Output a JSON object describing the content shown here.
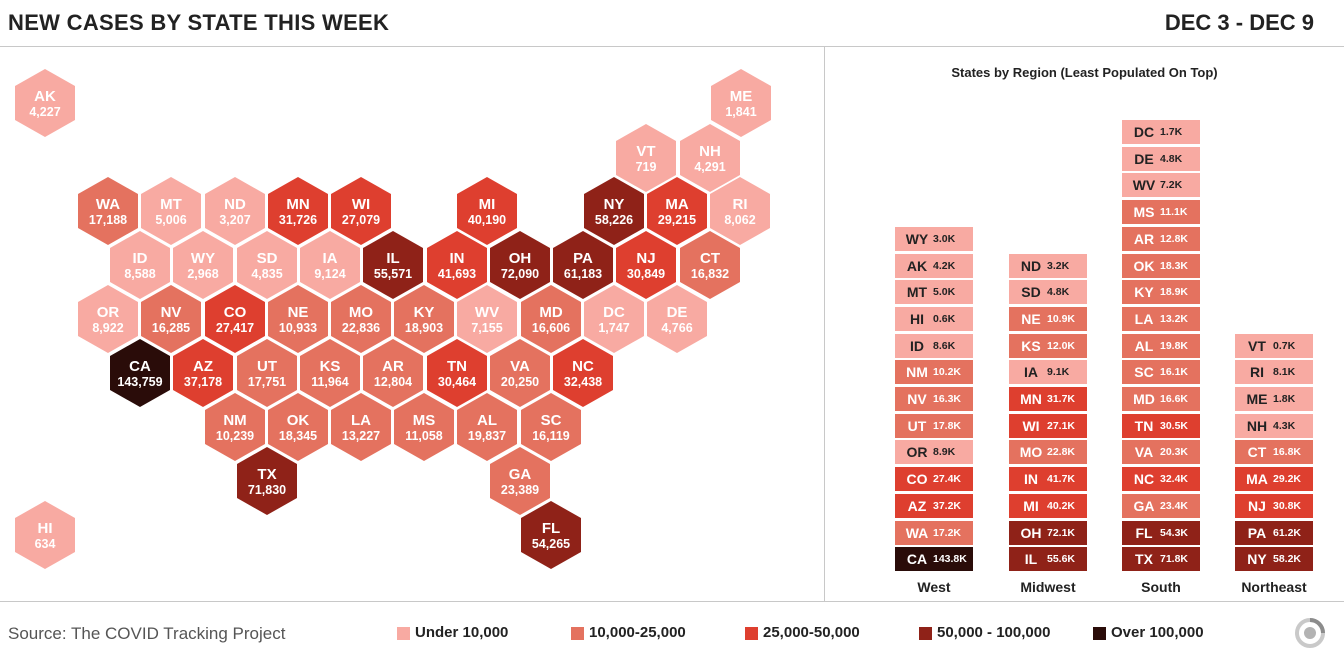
{
  "header": {
    "title": "NEW CASES BY STATE THIS WEEK",
    "date_range": "DEC 3 - DEC 9"
  },
  "colors": {
    "under_10k": "#f8aaa2",
    "10k_25k": "#e4725f",
    "25k_50k": "#de3f2f",
    "50k_100k": "#8f2218",
    "over_100k": "#2a0c09",
    "text_dark": "#222222"
  },
  "legend": {
    "source": "Source: The COVID Tracking Project",
    "items": [
      {
        "label": "Under 10,000",
        "color_key": "under_10k"
      },
      {
        "label": "10,000-25,000",
        "color_key": "10k_25k"
      },
      {
        "label": "25,000-50,000",
        "color_key": "25k_50k"
      },
      {
        "label": "50,000 - 100,000",
        "color_key": "50k_100k"
      },
      {
        "label": "Over 100,000",
        "color_key": "over_100k"
      }
    ]
  },
  "logo_icon": "covid-tracking-project-logo-icon",
  "map": {
    "states": [
      {
        "abbr": "AK",
        "cases": "4,227"
      },
      {
        "abbr": "ME",
        "cases": "1,841"
      },
      {
        "abbr": "VT",
        "cases": "719"
      },
      {
        "abbr": "NH",
        "cases": "4,291"
      },
      {
        "abbr": "WA",
        "cases": "17,188"
      },
      {
        "abbr": "MT",
        "cases": "5,006"
      },
      {
        "abbr": "ND",
        "cases": "3,207"
      },
      {
        "abbr": "MN",
        "cases": "31,726"
      },
      {
        "abbr": "WI",
        "cases": "27,079"
      },
      {
        "abbr": "MI",
        "cases": "40,190"
      },
      {
        "abbr": "NY",
        "cases": "58,226"
      },
      {
        "abbr": "MA",
        "cases": "29,215"
      },
      {
        "abbr": "RI",
        "cases": "8,062"
      },
      {
        "abbr": "ID",
        "cases": "8,588"
      },
      {
        "abbr": "WY",
        "cases": "2,968"
      },
      {
        "abbr": "SD",
        "cases": "4,835"
      },
      {
        "abbr": "IA",
        "cases": "9,124"
      },
      {
        "abbr": "IL",
        "cases": "55,571"
      },
      {
        "abbr": "IN",
        "cases": "41,693"
      },
      {
        "abbr": "OH",
        "cases": "72,090"
      },
      {
        "abbr": "PA",
        "cases": "61,183"
      },
      {
        "abbr": "NJ",
        "cases": "30,849"
      },
      {
        "abbr": "CT",
        "cases": "16,832"
      },
      {
        "abbr": "OR",
        "cases": "8,922"
      },
      {
        "abbr": "NV",
        "cases": "16,285"
      },
      {
        "abbr": "CO",
        "cases": "27,417"
      },
      {
        "abbr": "NE",
        "cases": "10,933"
      },
      {
        "abbr": "MO",
        "cases": "22,836"
      },
      {
        "abbr": "KY",
        "cases": "18,903"
      },
      {
        "abbr": "WV",
        "cases": "7,155"
      },
      {
        "abbr": "MD",
        "cases": "16,606"
      },
      {
        "abbr": "DC",
        "cases": "1,747"
      },
      {
        "abbr": "DE",
        "cases": "4,766"
      },
      {
        "abbr": "CA",
        "cases": "143,759"
      },
      {
        "abbr": "AZ",
        "cases": "37,178"
      },
      {
        "abbr": "UT",
        "cases": "17,751"
      },
      {
        "abbr": "KS",
        "cases": "11,964"
      },
      {
        "abbr": "AR",
        "cases": "12,804"
      },
      {
        "abbr": "TN",
        "cases": "30,464"
      },
      {
        "abbr": "VA",
        "cases": "20,250"
      },
      {
        "abbr": "NC",
        "cases": "32,438"
      },
      {
        "abbr": "NM",
        "cases": "10,239"
      },
      {
        "abbr": "OK",
        "cases": "18,345"
      },
      {
        "abbr": "LA",
        "cases": "13,227"
      },
      {
        "abbr": "MS",
        "cases": "11,058"
      },
      {
        "abbr": "AL",
        "cases": "19,837"
      },
      {
        "abbr": "SC",
        "cases": "16,119"
      },
      {
        "abbr": "TX",
        "cases": "71,830"
      },
      {
        "abbr": "GA",
        "cases": "23,389"
      },
      {
        "abbr": "HI",
        "cases": "634"
      },
      {
        "abbr": "FL",
        "cases": "54,265"
      }
    ]
  },
  "regions": {
    "title": "States by Region (Least Populated On Top)",
    "columns": [
      {
        "name": "West",
        "states": [
          {
            "abbr": "WY",
            "value": "3.0K"
          },
          {
            "abbr": "AK",
            "value": "4.2K"
          },
          {
            "abbr": "MT",
            "value": "5.0K"
          },
          {
            "abbr": "HI",
            "value": "0.6K"
          },
          {
            "abbr": "ID",
            "value": "8.6K"
          },
          {
            "abbr": "NM",
            "value": "10.2K"
          },
          {
            "abbr": "NV",
            "value": "16.3K"
          },
          {
            "abbr": "UT",
            "value": "17.8K"
          },
          {
            "abbr": "OR",
            "value": "8.9K"
          },
          {
            "abbr": "CO",
            "value": "27.4K"
          },
          {
            "abbr": "AZ",
            "value": "37.2K"
          },
          {
            "abbr": "WA",
            "value": "17.2K"
          },
          {
            "abbr": "CA",
            "value": "143.8K"
          }
        ]
      },
      {
        "name": "Midwest",
        "states": [
          {
            "abbr": "ND",
            "value": "3.2K"
          },
          {
            "abbr": "SD",
            "value": "4.8K"
          },
          {
            "abbr": "NE",
            "value": "10.9K"
          },
          {
            "abbr": "KS",
            "value": "12.0K"
          },
          {
            "abbr": "IA",
            "value": "9.1K"
          },
          {
            "abbr": "MN",
            "value": "31.7K"
          },
          {
            "abbr": "WI",
            "value": "27.1K"
          },
          {
            "abbr": "MO",
            "value": "22.8K"
          },
          {
            "abbr": "IN",
            "value": "41.7K"
          },
          {
            "abbr": "MI",
            "value": "40.2K"
          },
          {
            "abbr": "OH",
            "value": "72.1K"
          },
          {
            "abbr": "IL",
            "value": "55.6K"
          }
        ]
      },
      {
        "name": "South",
        "states": [
          {
            "abbr": "DC",
            "value": "1.7K"
          },
          {
            "abbr": "DE",
            "value": "4.8K"
          },
          {
            "abbr": "WV",
            "value": "7.2K"
          },
          {
            "abbr": "MS",
            "value": "11.1K"
          },
          {
            "abbr": "AR",
            "value": "12.8K"
          },
          {
            "abbr": "OK",
            "value": "18.3K"
          },
          {
            "abbr": "KY",
            "value": "18.9K"
          },
          {
            "abbr": "LA",
            "value": "13.2K"
          },
          {
            "abbr": "AL",
            "value": "19.8K"
          },
          {
            "abbr": "SC",
            "value": "16.1K"
          },
          {
            "abbr": "MD",
            "value": "16.6K"
          },
          {
            "abbr": "TN",
            "value": "30.5K"
          },
          {
            "abbr": "VA",
            "value": "20.3K"
          },
          {
            "abbr": "NC",
            "value": "32.4K"
          },
          {
            "abbr": "GA",
            "value": "23.4K"
          },
          {
            "abbr": "FL",
            "value": "54.3K"
          },
          {
            "abbr": "TX",
            "value": "71.8K"
          }
        ]
      },
      {
        "name": "Northeast",
        "states": [
          {
            "abbr": "VT",
            "value": "0.7K"
          },
          {
            "abbr": "RI",
            "value": "8.1K"
          },
          {
            "abbr": "ME",
            "value": "1.8K"
          },
          {
            "abbr": "NH",
            "value": "4.3K"
          },
          {
            "abbr": "CT",
            "value": "16.8K"
          },
          {
            "abbr": "MA",
            "value": "29.2K"
          },
          {
            "abbr": "NJ",
            "value": "30.8K"
          },
          {
            "abbr": "PA",
            "value": "61.2K"
          },
          {
            "abbr": "NY",
            "value": "58.2K"
          }
        ]
      }
    ]
  }
}
